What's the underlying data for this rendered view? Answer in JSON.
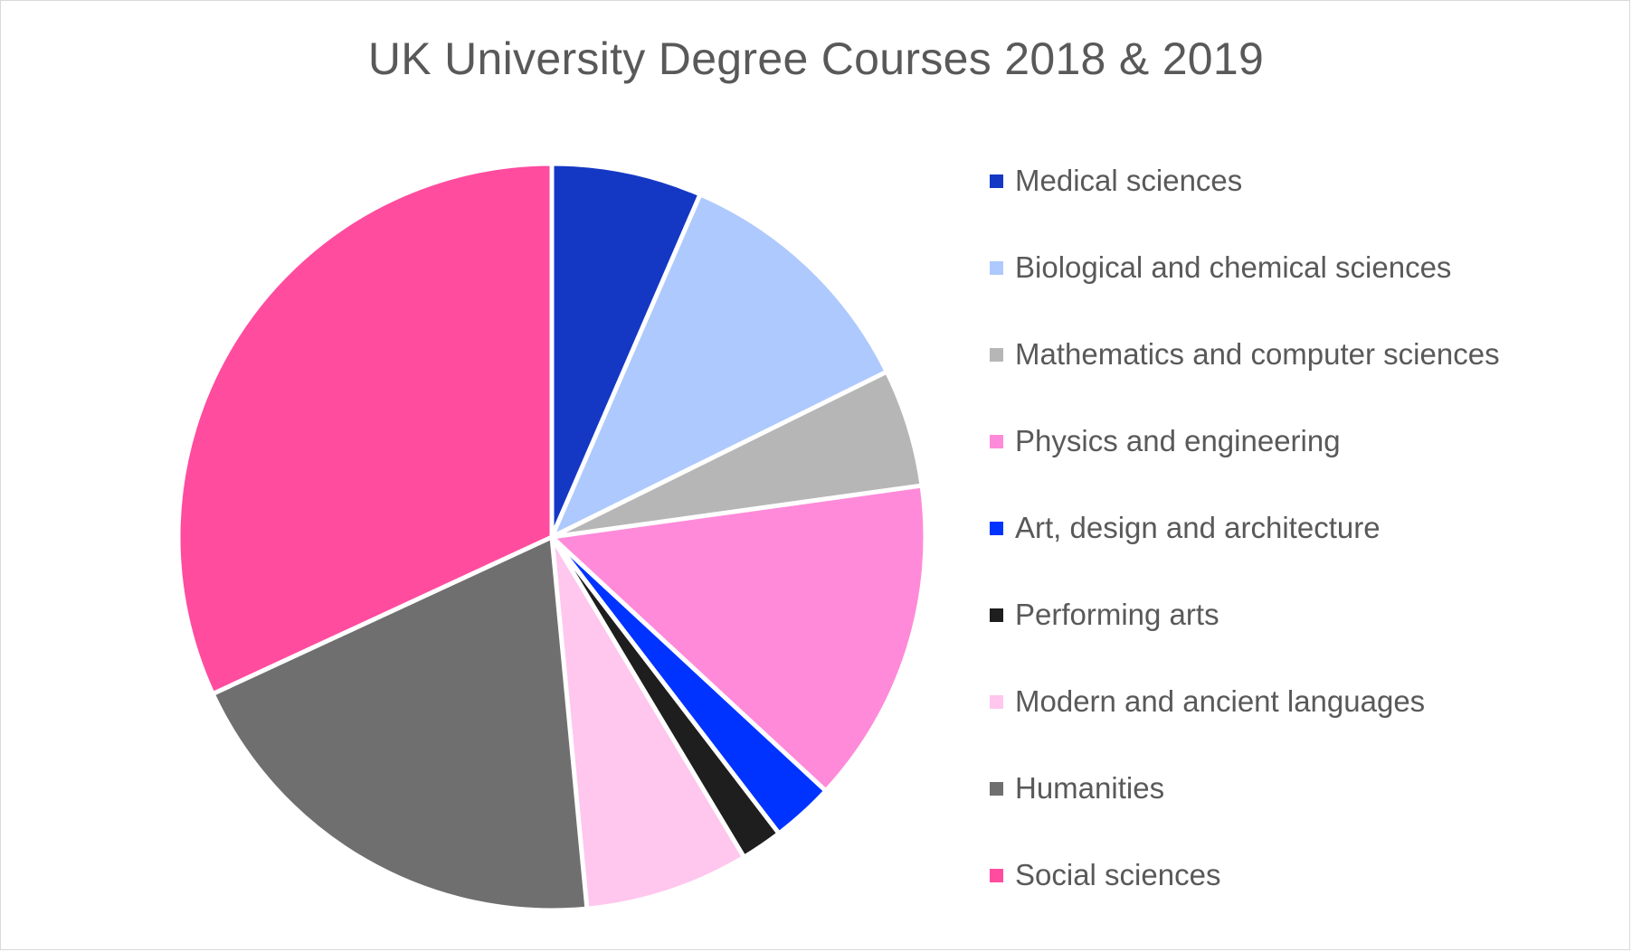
{
  "chart_data": {
    "type": "pie",
    "title": "UK University Degree Courses 2018 & 2019",
    "legend_position": "right",
    "start_angle_deg": 0,
    "direction": "clockwise",
    "slices": [
      {
        "label": "Medical sciences",
        "value": 6.5,
        "color": "#1538C4"
      },
      {
        "label": "Biological and chemical sciences",
        "value": 11.2,
        "color": "#AEC9FD"
      },
      {
        "label": "Mathematics and computer sciences",
        "value": 5.1,
        "color": "#B6B6B6"
      },
      {
        "label": "Physics and engineering",
        "value": 14.1,
        "color": "#FF8AD9"
      },
      {
        "label": "Art, design and architecture",
        "value": 2.7,
        "color": "#0033FF"
      },
      {
        "label": "Performing arts",
        "value": 1.8,
        "color": "#1E1E1E"
      },
      {
        "label": "Modern and ancient languages",
        "value": 7.1,
        "color": "#FFC6EE"
      },
      {
        "label": "Humanities",
        "value": 19.6,
        "color": "#6F6F6F"
      },
      {
        "label": "Social sciences",
        "value": 31.9,
        "color": "#FF4C9F"
      }
    ]
  }
}
